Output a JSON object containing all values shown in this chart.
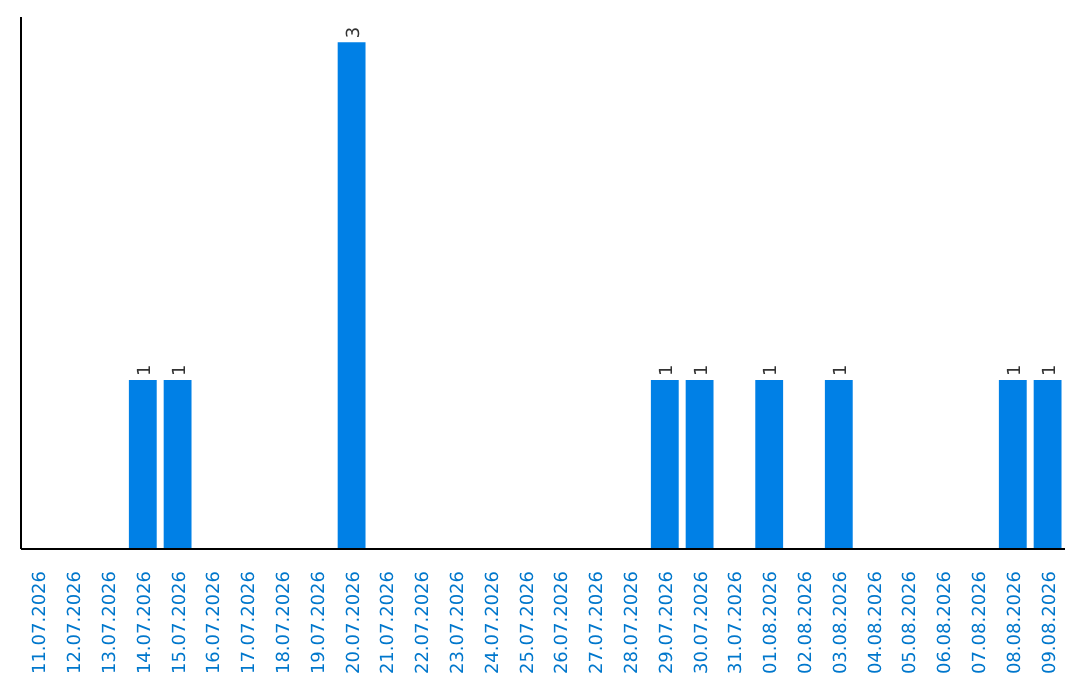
{
  "chart_data": {
    "type": "bar",
    "categories": [
      "11.07.2026",
      "12.07.2026",
      "13.07.2026",
      "14.07.2026",
      "15.07.2026",
      "16.07.2026",
      "17.07.2026",
      "18.07.2026",
      "19.07.2026",
      "20.07.2026",
      "21.07.2026",
      "22.07.2026",
      "23.07.2026",
      "24.07.2026",
      "25.07.2026",
      "26.07.2026",
      "27.07.2026",
      "28.07.2026",
      "29.07.2026",
      "30.07.2026",
      "31.07.2026",
      "01.08.2026",
      "02.08.2026",
      "03.08.2026",
      "04.08.2026",
      "05.08.2026",
      "06.08.2026",
      "07.08.2026",
      "08.08.2026",
      "09.08.2026"
    ],
    "values": [
      0,
      0,
      0,
      1,
      1,
      0,
      0,
      0,
      0,
      3,
      0,
      0,
      0,
      0,
      0,
      0,
      0,
      0,
      1,
      1,
      0,
      1,
      0,
      1,
      0,
      0,
      0,
      0,
      1,
      1
    ],
    "color": "#0080e6",
    "ylim": [
      0,
      3.15
    ],
    "tick_labels": "x",
    "value_labels": [
      null,
      null,
      null,
      "1",
      "1",
      null,
      null,
      null,
      null,
      "3",
      null,
      null,
      null,
      null,
      null,
      null,
      null,
      null,
      "1",
      "1",
      null,
      "1",
      null,
      "1",
      null,
      null,
      null,
      null,
      "1",
      "1"
    ]
  }
}
